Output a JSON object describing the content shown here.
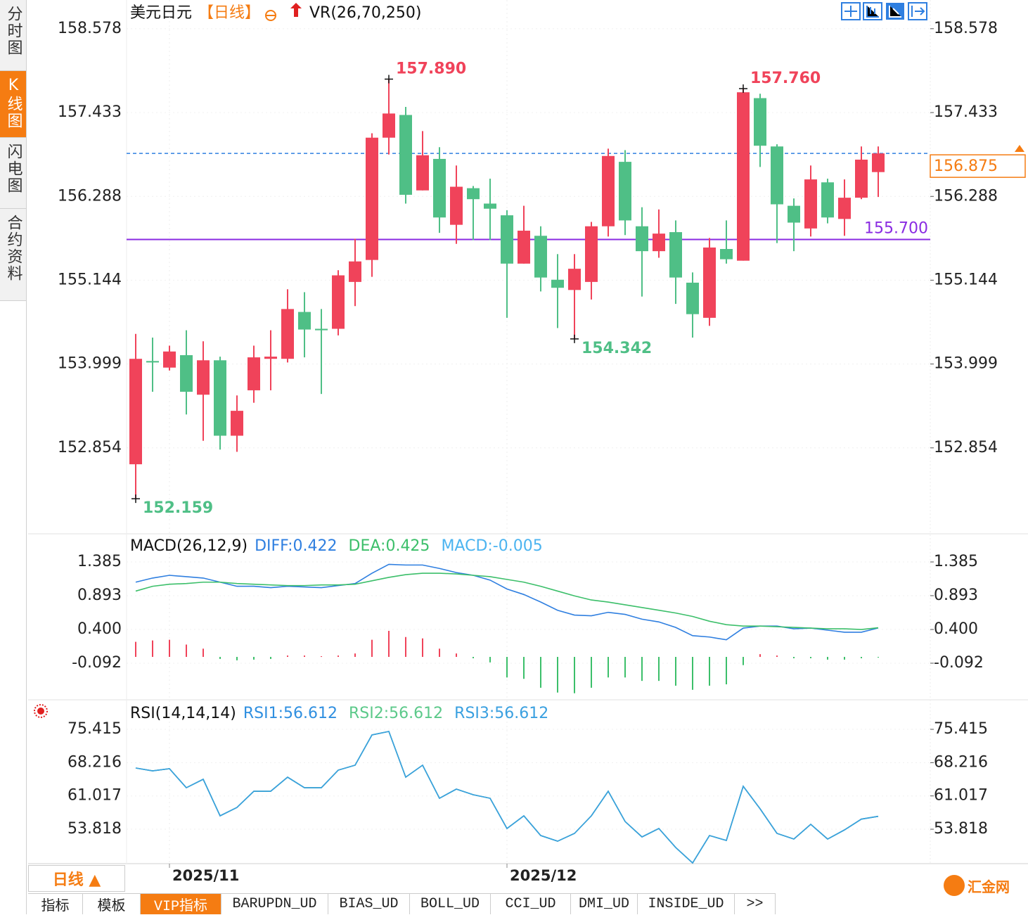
{
  "chart_data": [
    {
      "type": "candlestick",
      "title": "美元日元",
      "period": "【日线】",
      "indicator": "VR(26,70,250)",
      "categories": [
        null,
        null,
        "2025/11",
        null,
        null,
        null,
        null,
        null,
        null,
        null,
        null,
        null,
        null,
        null,
        null,
        null,
        null,
        null,
        null,
        null,
        null,
        null,
        "2025/12",
        null,
        null,
        null,
        null,
        null,
        null,
        null,
        null,
        null,
        null,
        null,
        null,
        null,
        null,
        null,
        null,
        null,
        null,
        null,
        null,
        null,
        null
      ],
      "open": [
        152.63,
        154.04,
        153.95,
        154.12,
        153.58,
        154.05,
        153.02,
        153.64,
        154.07,
        154.07,
        154.71,
        154.48,
        154.48,
        155.12,
        155.42,
        157.09,
        157.4,
        156.37,
        156.8,
        155.9,
        156.4,
        156.19,
        156.03,
        155.37,
        155.75,
        155.15,
        155.01,
        155.12,
        155.88,
        156.76,
        155.88,
        155.54,
        155.8,
        155.11,
        154.63,
        155.57,
        155.41,
        157.63,
        156.97,
        156.16,
        155.85,
        156.48,
        155.98,
        156.27,
        156.62
      ],
      "high": [
        154.41,
        154.36,
        154.25,
        154.46,
        154.31,
        154.1,
        153.57,
        154.25,
        154.46,
        155.02,
        154.98,
        154.75,
        155.28,
        155.71,
        157.15,
        157.89,
        157.51,
        157.18,
        156.96,
        156.71,
        156.43,
        156.53,
        156.1,
        156.16,
        155.88,
        155.5,
        155.5,
        155.94,
        156.94,
        156.92,
        156.14,
        156.11,
        155.96,
        155.25,
        155.72,
        155.96,
        157.76,
        157.69,
        157.0,
        156.26,
        156.71,
        156.53,
        156.52,
        156.97,
        156.97
      ],
      "low": [
        152.159,
        153.62,
        153.91,
        153.31,
        152.95,
        152.83,
        152.8,
        153.47,
        153.64,
        154.02,
        154.09,
        153.59,
        154.39,
        154.79,
        155.19,
        156.86,
        156.19,
        156.37,
        155.79,
        155.64,
        155.69,
        155.69,
        154.63,
        155.37,
        154.99,
        154.49,
        154.342,
        154.88,
        155.74,
        155.76,
        154.92,
        155.45,
        154.82,
        154.36,
        154.52,
        155.37,
        155.41,
        156.69,
        155.65,
        155.54,
        155.74,
        155.92,
        155.75,
        156.25,
        156.28
      ],
      "close": [
        154.07,
        154.02,
        154.17,
        153.62,
        154.05,
        153.02,
        153.36,
        154.09,
        154.1,
        154.75,
        154.47,
        154.46,
        155.21,
        155.4,
        157.09,
        157.42,
        156.31,
        156.85,
        156.0,
        156.42,
        156.25,
        156.12,
        155.37,
        155.82,
        155.18,
        155.04,
        155.3,
        155.88,
        156.84,
        155.96,
        155.54,
        155.78,
        155.18,
        154.68,
        155.59,
        155.43,
        157.71,
        156.98,
        156.18,
        155.93,
        156.52,
        156.0,
        156.27,
        156.79,
        156.875
      ],
      "up_color": "#f0435a",
      "down_color": "#4fbf86",
      "ylim": [
        151.69,
        158.97
      ],
      "yticks": [
        158.578,
        157.433,
        156.288,
        155.144,
        153.999,
        152.854
      ],
      "grid": true,
      "annotations": [
        {
          "index": 15,
          "value": 157.89,
          "label": "157.890",
          "color": "#f0435a"
        },
        {
          "index": 36,
          "value": 157.76,
          "label": "157.760",
          "color": "#f0435a"
        },
        {
          "index": 26,
          "value": 154.342,
          "label": "154.342",
          "color": "#4fbf86"
        },
        {
          "index": 0,
          "value": 152.159,
          "label": "152.159",
          "color": "#4fbf86"
        }
      ],
      "hlines": [
        {
          "value": 155.7,
          "label": "155.700",
          "color": "#8a2be2"
        }
      ],
      "last_price": {
        "value": 156.875,
        "label": "156.875",
        "color": "#f57c12",
        "line_color": "#2f7fe0"
      }
    },
    {
      "type": "macd",
      "title": "MACD(26,12,9)",
      "series": [
        {
          "name": "DIFF:0.422",
          "color": "#2f7fe0",
          "values": [
            1.09,
            1.15,
            1.19,
            1.17,
            1.15,
            1.09,
            1.03,
            1.03,
            1.01,
            1.03,
            1.02,
            1.01,
            1.04,
            1.07,
            1.22,
            1.35,
            1.34,
            1.34,
            1.29,
            1.23,
            1.19,
            1.12,
            0.99,
            0.91,
            0.8,
            0.68,
            0.61,
            0.6,
            0.65,
            0.62,
            0.55,
            0.51,
            0.43,
            0.31,
            0.29,
            0.25,
            0.42,
            0.45,
            0.45,
            0.41,
            0.42,
            0.39,
            0.36,
            0.36,
            0.422
          ]
        },
        {
          "name": "DEA:0.425",
          "color": "#3cbf6a",
          "values": [
            0.96,
            1.03,
            1.06,
            1.07,
            1.09,
            1.09,
            1.07,
            1.06,
            1.05,
            1.04,
            1.04,
            1.05,
            1.05,
            1.06,
            1.11,
            1.16,
            1.2,
            1.22,
            1.22,
            1.21,
            1.19,
            1.17,
            1.13,
            1.09,
            1.03,
            0.96,
            0.89,
            0.83,
            0.8,
            0.76,
            0.72,
            0.68,
            0.64,
            0.59,
            0.52,
            0.47,
            0.45,
            0.45,
            0.44,
            0.43,
            0.42,
            0.41,
            0.41,
            0.4,
            0.425
          ]
        },
        {
          "name": "MACD:-0.005",
          "color": "#4cb4f0",
          "up_color": "#f0435a",
          "down_color": "#3cbf6a",
          "bars": true,
          "values": [
            0.22,
            0.24,
            0.25,
            0.18,
            0.12,
            -0.03,
            -0.05,
            -0.04,
            -0.03,
            0.02,
            0.02,
            0.01,
            0.02,
            0.05,
            0.25,
            0.38,
            0.29,
            0.27,
            0.12,
            0.05,
            -0.02,
            -0.08,
            -0.3,
            -0.32,
            -0.45,
            -0.52,
            -0.53,
            -0.45,
            -0.3,
            -0.3,
            -0.35,
            -0.35,
            -0.42,
            -0.48,
            -0.42,
            -0.4,
            -0.12,
            0.04,
            0.02,
            -0.02,
            -0.02,
            -0.04,
            -0.04,
            -0.02,
            -0.005
          ]
        }
      ],
      "ylim": [
        -0.605,
        1.785
      ],
      "yticks": [
        1.385,
        0.893,
        {
          "value": 0.4,
          "label": "0.400"
        },
        -0.092
      ],
      "grid": true
    },
    {
      "type": "line",
      "title": "RSI(14,14,14)",
      "series": [
        {
          "name": "RSI1:56.612",
          "color": "#2f8fe0",
          "values": [
            67.05,
            66.44,
            66.9,
            62.79,
            64.62,
            56.71,
            58.53,
            62.03,
            62.03,
            65.07,
            62.79,
            62.79,
            66.59,
            67.66,
            74.2,
            74.96,
            65.07,
            67.66,
            60.51,
            62.49,
            61.27,
            60.51,
            53.97,
            56.71,
            52.45,
            51.23,
            52.91,
            56.71,
            62.03,
            55.49,
            52.15,
            53.97,
            49.86,
            46.52,
            52.45,
            51.39,
            63.1,
            58.23,
            52.91,
            51.69,
            54.88,
            51.69,
            53.67,
            56,
            56.612
          ]
        },
        {
          "name": "RSI2:56.612",
          "color": "#5cc98a",
          "values": [
            67.05,
            66.44,
            66.9,
            62.79,
            64.62,
            56.71,
            58.53,
            62.03,
            62.03,
            65.07,
            62.79,
            62.79,
            66.59,
            67.66,
            74.2,
            74.96,
            65.07,
            67.66,
            60.51,
            62.49,
            61.27,
            60.51,
            53.97,
            56.71,
            52.45,
            51.23,
            52.91,
            56.71,
            62.03,
            55.49,
            52.15,
            53.97,
            49.86,
            46.52,
            52.45,
            51.39,
            63.1,
            58.23,
            52.91,
            51.69,
            54.88,
            51.69,
            53.67,
            56,
            56.612
          ]
        },
        {
          "name": "RSI3:56.612",
          "color": "#3aa0e0",
          "values": [
            67.05,
            66.44,
            66.9,
            62.79,
            64.62,
            56.71,
            58.53,
            62.03,
            62.03,
            65.07,
            62.79,
            62.79,
            66.59,
            67.66,
            74.2,
            74.96,
            65.07,
            67.66,
            60.51,
            62.49,
            61.27,
            60.51,
            53.97,
            56.71,
            52.45,
            51.23,
            52.91,
            56.71,
            62.03,
            55.49,
            52.15,
            53.97,
            49.86,
            46.52,
            52.45,
            51.39,
            63.1,
            58.23,
            52.91,
            51.69,
            54.88,
            51.69,
            53.67,
            56,
            56.612
          ]
        }
      ],
      "ylim": [
        46.37,
        81.5
      ],
      "yticks": [
        75.415,
        68.216,
        61.017,
        53.818
      ],
      "grid": true
    }
  ],
  "ui": {
    "side_tabs": [
      "分时图",
      "K线图",
      "闪电图",
      "合约资料"
    ],
    "period_button": "日线 ▲",
    "bottom_tabs": [
      "指标",
      "模板",
      "VIP指标",
      "BARUPDN_UD",
      "BIAS_UD",
      "BOLL_UD",
      "CCI_UD",
      "DMI_UD",
      "INSIDE_UD",
      ">>"
    ],
    "logo": "汇金网"
  }
}
